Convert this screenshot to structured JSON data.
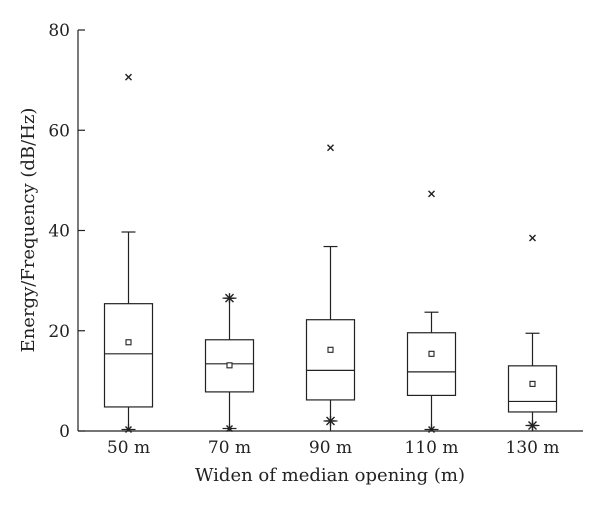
{
  "chart_data": {
    "type": "boxplot",
    "xlabel": "Widen of median opening (m)",
    "ylabel": "Energy/Frequency (dB/Hz)",
    "ylim": [
      0,
      80
    ],
    "yticks": [
      0,
      20,
      40,
      60,
      80
    ],
    "grid": false,
    "categories": [
      "50 m",
      "70 m",
      "90 m",
      "110 m",
      "130 m"
    ],
    "boxes": [
      {
        "category": "50 m",
        "q1": 4.8,
        "median": 15.4,
        "q3": 25.4,
        "whisker_low": 0.3,
        "whisker_high": 39.7,
        "mean": 17.7,
        "extreme_low": 0.3,
        "extreme_high": 70.6,
        "extreme_low_marker": "x",
        "extreme_high_marker": "x"
      },
      {
        "category": "70 m",
        "q1": 7.8,
        "median": 13.4,
        "q3": 18.2,
        "whisker_low": 0.5,
        "whisker_high": 26.5,
        "mean": 13.1,
        "extreme_low": 0.5,
        "extreme_high": 26.5,
        "extreme_low_marker": "x",
        "extreme_high_marker": "asterisk"
      },
      {
        "category": "90 m",
        "q1": 6.2,
        "median": 12.1,
        "q3": 22.2,
        "whisker_low": 2.0,
        "whisker_high": 36.8,
        "mean": 16.2,
        "extreme_low": 2.0,
        "extreme_high": 56.5,
        "extreme_low_marker": "asterisk",
        "extreme_high_marker": "x"
      },
      {
        "category": "110 m",
        "q1": 7.1,
        "median": 11.8,
        "q3": 19.6,
        "whisker_low": 0.3,
        "whisker_high": 23.7,
        "mean": 15.4,
        "extreme_low": 0.3,
        "extreme_high": 47.3,
        "extreme_low_marker": "x",
        "extreme_high_marker": "x"
      },
      {
        "category": "130 m",
        "q1": 3.8,
        "median": 5.9,
        "q3": 13.0,
        "whisker_low": 1.1,
        "whisker_high": 19.5,
        "mean": 9.4,
        "extreme_low": 1.1,
        "extreme_high": 38.5,
        "extreme_low_marker": "asterisk",
        "extreme_high_marker": "x"
      }
    ]
  }
}
